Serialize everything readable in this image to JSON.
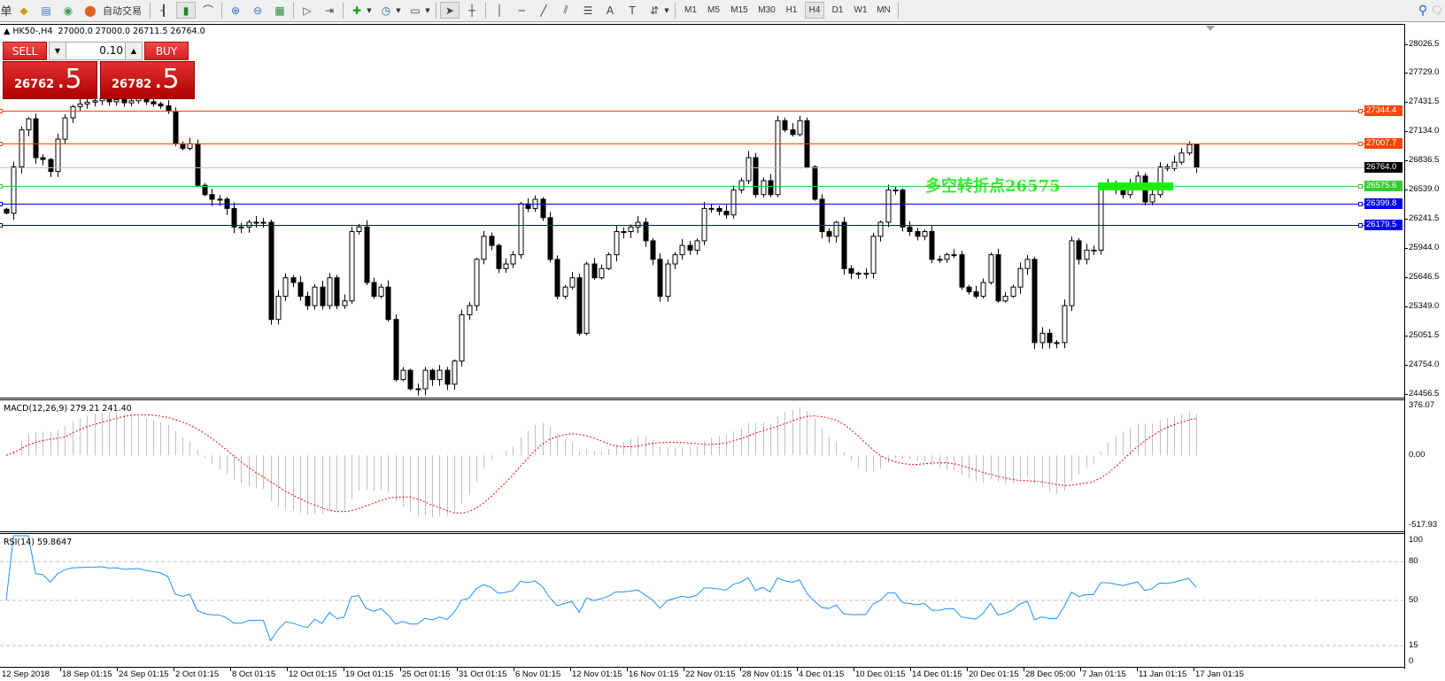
{
  "toolbar": {
    "left_fragment": "单",
    "auto_trade_label": "自动交易",
    "icons": [
      "market-watch-icon",
      "navigator-icon",
      "signals-icon",
      "auto-trading-icon",
      "bar-chart-icon",
      "candlestick-chart-icon",
      "line-chart-icon",
      "zoom-in-icon",
      "zoom-out-icon",
      "tile-windows-icon",
      "auto-scroll-icon",
      "chart-shift-icon",
      "indicators-icon",
      "periods-icon",
      "templates-icon",
      "cursor-icon",
      "crosshair-icon",
      "vertical-line-icon",
      "horizontal-line-icon",
      "trendline-icon",
      "equidistant-channel-icon",
      "fibonacci-icon",
      "text-icon",
      "text-label-icon",
      "arrows-icon",
      "search-icon",
      "chat-icon"
    ],
    "timeframes": [
      "M1",
      "M5",
      "M15",
      "M30",
      "H1",
      "H4",
      "D1",
      "W1",
      "MN"
    ],
    "active_timeframe": "H4"
  },
  "header": {
    "symbol": "HK50-,H4",
    "ohlc": "27000.0 27000.0 26711.5 26764.0"
  },
  "trade_panel": {
    "sell_label": "SELL",
    "buy_label": "BUY",
    "lot": "0.10",
    "sell_price_main": "26762",
    "sell_price_frac": ".5",
    "buy_price_main": "26782",
    "buy_price_frac": ".5"
  },
  "annotation": "多空转折点26575",
  "chart_data": {
    "type": "candlestick",
    "symbol": "HK50-",
    "timeframe": "H4",
    "price_axis": {
      "ylim": [
        24456.5,
        28026.5
      ],
      "ticks": [
        "28026.5",
        "27729.0",
        "27431.5",
        "27134.0",
        "26836.5",
        "26539.0",
        "26241.5",
        "25944.0",
        "25646.5",
        "25349.0",
        "25051.5",
        "24754.0",
        "24456.5"
      ]
    },
    "time_labels": [
      "12 Sep 2018",
      "18 Sep 01:15",
      "24 Sep 01:15",
      "2 Oct 01:15",
      "8 Oct 01:15",
      "12 Oct 01:15",
      "19 Oct 01:15",
      "25 Oct 01:15",
      "31 Oct 01:15",
      "6 Nov 01:15",
      "12 Nov 01:15",
      "16 Nov 01:15",
      "22 Nov 01:15",
      "28 Nov 01:15",
      "4 Dec 01:15",
      "10 Dec 01:15",
      "14 Dec 01:15",
      "20 Dec 01:15",
      "28 Dec 05:00",
      "7 Jan 01:15",
      "11 Jan 01:15",
      "17 Jan 01:15"
    ],
    "closes": [
      26300,
      26772,
      27149,
      27262,
      26866,
      26847,
      26725,
      27055,
      27272,
      27386,
      27413,
      27432,
      27446,
      27467,
      27436,
      27457,
      27425,
      27446,
      27467,
      27436,
      27414,
      27393,
      27338,
      27008,
      26961,
      27008,
      26584,
      26489,
      26442,
      26442,
      26348,
      26159,
      26159,
      26207,
      26207,
      26207,
      25216,
      25452,
      25641,
      25593,
      25452,
      25357,
      25546,
      25357,
      25641,
      25357,
      25405,
      26112,
      26159,
      25593,
      25452,
      25546,
      25216,
      24603,
      24698,
      24509,
      24509,
      24698,
      24603,
      24698,
      24556,
      24792,
      25264,
      25357,
      25829,
      26064,
      25971,
      25735,
      25782,
      25876,
      26395,
      26348,
      26442,
      26254,
      25829,
      25452,
      25546,
      25641,
      25075,
      25782,
      25641,
      25735,
      25876,
      26112,
      26112,
      26159,
      26207,
      26018,
      25829,
      25452,
      25782,
      25876,
      25971,
      25923,
      26018,
      26348,
      26348,
      26319,
      26282,
      26536,
      26631,
      26866,
      26489,
      26631,
      26489,
      27243,
      27149,
      27102,
      27243,
      26772,
      26442,
      26112,
      26064,
      26207,
      25735,
      25687,
      25687,
      25687,
      26064,
      26207,
      26536,
      26536,
      26159,
      26112,
      26064,
      26112,
      25829,
      25829,
      25876,
      25876,
      25546,
      25499,
      25452,
      25593,
      25876,
      25405,
      25452,
      25546,
      25735,
      25829,
      24980,
      25075,
      24980,
      24980,
      25357,
      26018,
      25829,
      25923,
      25923,
      26584,
      26584,
      26536,
      26489,
      26584,
      26678,
      26414,
      26489,
      26772,
      26756,
      26820,
      26913,
      27000,
      26764
    ],
    "last_bar": {
      "open": 27000.0,
      "high": 27000.0,
      "low": 26711.5,
      "close": 26764.0
    },
    "horizontal_lines": [
      {
        "price": "27344.4",
        "color": "#ff4500"
      },
      {
        "price": "27007.7",
        "color": "#ff4500"
      },
      {
        "price": "26764.0",
        "color": "#c0c0c0",
        "tag_color": "#000000"
      },
      {
        "price": "26575.6",
        "color": "#32cd32"
      },
      {
        "price": "26399.8",
        "color": "#0000ff"
      },
      {
        "price": "26179.5",
        "color": "#0000ff"
      }
    ],
    "zone": {
      "price": 26575,
      "color": "#00ff00"
    },
    "macd": {
      "title": "MACD(12,26,9) 279.21 241.40",
      "params": [
        12,
        26,
        9
      ],
      "ylim": [
        -517.93,
        376.07
      ],
      "ticks": [
        "376.07",
        "0.00",
        "-517.93"
      ],
      "histogram_color": "#c0c0c0",
      "signal_color": "#ff0000"
    },
    "rsi": {
      "title": "RSI(14) 59.8647",
      "period": 14,
      "ylim": [
        0,
        100
      ],
      "ticks": [
        "100",
        "80",
        "50",
        "15",
        "0"
      ],
      "levels": [
        80,
        50,
        15
      ],
      "color": "#1e90ff"
    }
  }
}
